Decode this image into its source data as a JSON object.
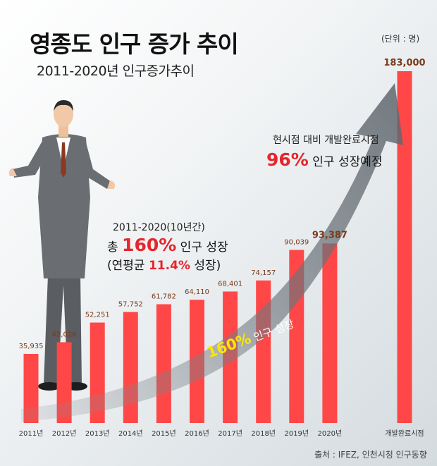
{
  "header": {
    "title": "영종도 인구 증가 추이",
    "subtitle": "2011-2020년 인구증가추이",
    "unit": "(단위 : 명)"
  },
  "annotations": {
    "future_line1": "현시점 대비 개발완료시점",
    "future_pct": "96%",
    "future_rest": " 인구 성장예정",
    "period": "2011-2020(10년간)",
    "total_prefix": "총 ",
    "total_pct": "160%",
    "total_rest": " 인구 성장",
    "avg_prefix": "(연평균 ",
    "avg_pct": "11.4%",
    "avg_rest": " 성장)",
    "arrow_pct": "160%",
    "arrow_rest": " 인구 성장"
  },
  "source": "출처 : IFEZ, 인천시청 인구동향",
  "colors": {
    "bar": "#ff4747",
    "accent": "#e5262c",
    "highlight": "#ffe600"
  },
  "chart_data": {
    "type": "bar",
    "categories": [
      "2011년",
      "2012년",
      "2013년",
      "2014년",
      "2015년",
      "2016년",
      "2017년",
      "2018년",
      "2019년",
      "2020년",
      "개발완료시점"
    ],
    "values": [
      35935,
      42026,
      52251,
      57752,
      61782,
      64110,
      68401,
      74157,
      90039,
      93387,
      183000
    ],
    "value_labels": [
      "35,935",
      "42,026",
      "52,251",
      "57,752",
      "61,782",
      "64,110",
      "68,401",
      "74,157",
      "90,039",
      "93,387",
      "183,000"
    ],
    "ylim": [
      0,
      183000
    ],
    "grid": false
  }
}
